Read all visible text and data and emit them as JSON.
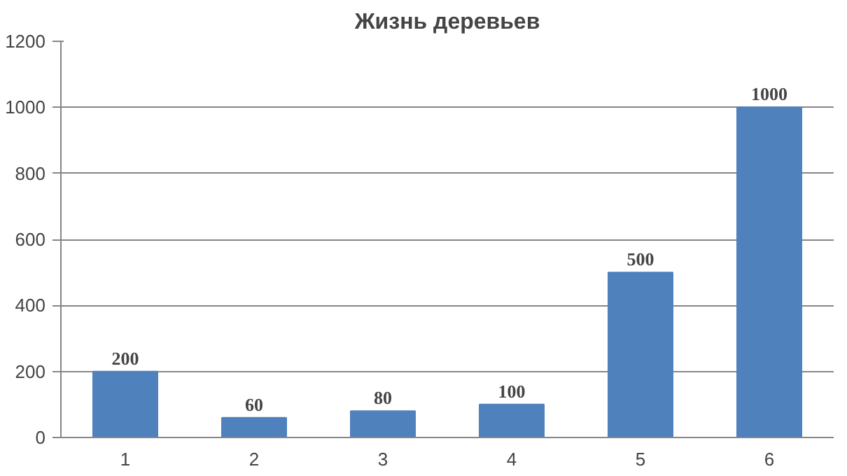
{
  "chart_data": {
    "type": "bar",
    "title": "Жизнь деревьев",
    "categories": [
      "1",
      "2",
      "3",
      "4",
      "5",
      "6"
    ],
    "values": [
      200,
      60,
      80,
      100,
      500,
      1000
    ],
    "color": "#4f81bd",
    "ylim": [
      0,
      1200
    ],
    "yticks": [
      0,
      200,
      400,
      600,
      800,
      1000,
      1200
    ],
    "grid": "y",
    "data_labels": true
  }
}
